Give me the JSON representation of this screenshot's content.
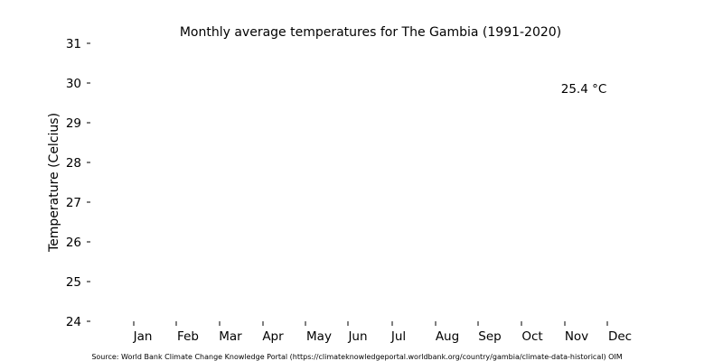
{
  "chart_data": {
    "type": "bar",
    "title": "Monthly average temperatures for The Gambia (1991-2020)",
    "ylabel": "Temperature (Celcius)",
    "xlabel": "",
    "ylim": [
      24,
      31
    ],
    "yticks": [
      "24",
      "25",
      "26",
      "27",
      "28",
      "29",
      "30",
      "31"
    ],
    "categories": [
      "Jan",
      "Feb",
      "Mar",
      "Apr",
      "May",
      "Jun",
      "Jul",
      "Aug",
      "Sep",
      "Oct",
      "Nov",
      "Dec"
    ],
    "annotation": "25.4 °C",
    "source": "Source: World Bank Climate Change Knowledge Portal (https://climateknowledgeportal.worldbank.org/country/gambia/climate-data-historical) OIM",
    "grid": false
  }
}
